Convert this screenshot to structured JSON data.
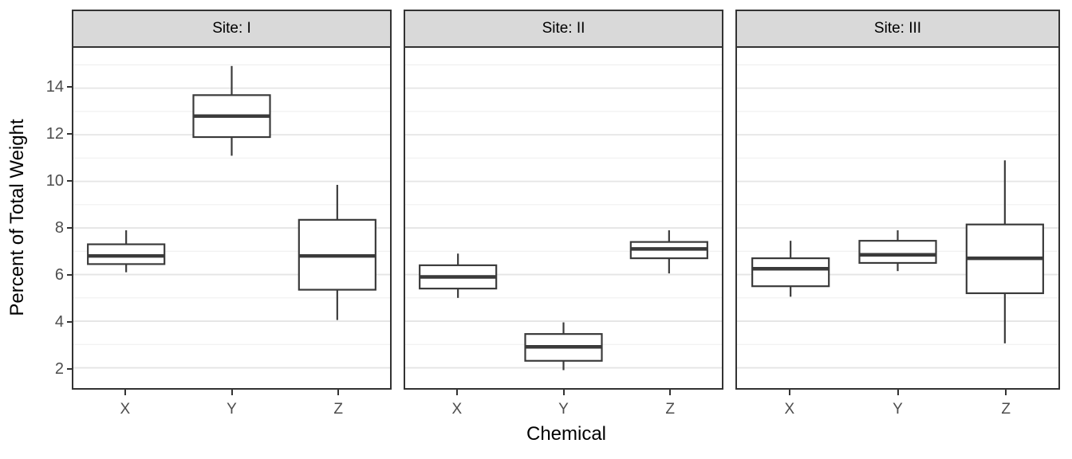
{
  "figure": {
    "xlabel": "Chemical",
    "ylabel": "Percent of Total Weight"
  },
  "chart_data": {
    "type": "boxplot",
    "title": "",
    "xlabel": "Chemical",
    "ylabel": "Percent of Total Weight",
    "yticks": [
      2,
      4,
      6,
      8,
      10,
      12,
      14
    ],
    "yticks_minor": [
      3,
      5,
      7,
      9,
      11,
      13,
      15
    ],
    "ylim": [
      1.13,
      15.73
    ],
    "grid": "major+minor",
    "legend": "none",
    "facets": [
      {
        "label": "Site: I",
        "categories": [
          "X",
          "Y",
          "Z"
        ],
        "boxes": [
          {
            "category": "X",
            "whisker_low": 6.1,
            "q1": 6.45,
            "median": 6.8,
            "q3": 7.3,
            "whisker_high": 7.9
          },
          {
            "category": "Y",
            "whisker_low": 11.1,
            "q1": 11.9,
            "median": 12.8,
            "q3": 13.7,
            "whisker_high": 14.95
          },
          {
            "category": "Z",
            "whisker_low": 4.05,
            "q1": 5.35,
            "median": 6.8,
            "q3": 8.35,
            "whisker_high": 9.85
          }
        ]
      },
      {
        "label": "Site: II",
        "categories": [
          "X",
          "Y",
          "Z"
        ],
        "boxes": [
          {
            "category": "X",
            "whisker_low": 5.0,
            "q1": 5.4,
            "median": 5.9,
            "q3": 6.4,
            "whisker_high": 6.9
          },
          {
            "category": "Y",
            "whisker_low": 1.9,
            "q1": 2.3,
            "median": 2.9,
            "q3": 3.45,
            "whisker_high": 3.95
          },
          {
            "category": "Z",
            "whisker_low": 6.05,
            "q1": 6.7,
            "median": 7.1,
            "q3": 7.4,
            "whisker_high": 7.9
          }
        ]
      },
      {
        "label": "Site: III",
        "categories": [
          "X",
          "Y",
          "Z"
        ],
        "boxes": [
          {
            "category": "X",
            "whisker_low": 5.05,
            "q1": 5.5,
            "median": 6.25,
            "q3": 6.7,
            "whisker_high": 7.45
          },
          {
            "category": "Y",
            "whisker_low": 6.15,
            "q1": 6.5,
            "median": 6.85,
            "q3": 7.45,
            "whisker_high": 7.9
          },
          {
            "category": "Z",
            "whisker_low": 3.05,
            "q1": 5.2,
            "median": 6.7,
            "q3": 8.15,
            "whisker_high": 10.9
          }
        ]
      }
    ],
    "colors": {
      "box_stroke": "#3A3A3A",
      "box_fill": "#FFFFFF",
      "panel_border": "#333333",
      "strip_fill": "#D9D9D9",
      "grid_major": "#E5E5E5",
      "grid_minor": "#F0F0F0",
      "tick_label": "#4D4D4D",
      "title_text": "#000000"
    }
  }
}
